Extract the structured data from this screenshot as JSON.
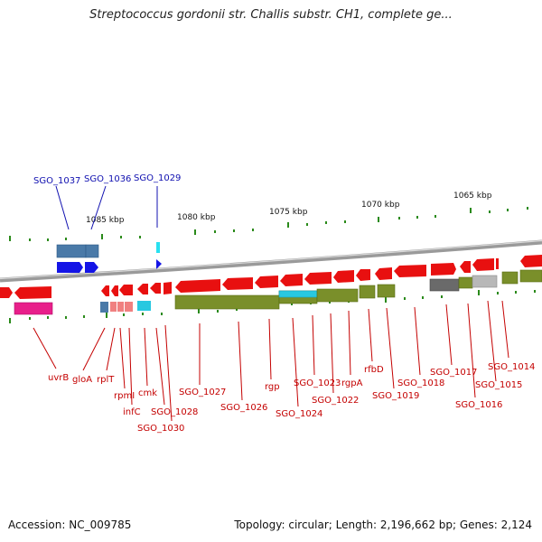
{
  "title": "Streptococcus gordonii str. Challis substr. CH1, complete ge...",
  "footer": {
    "accession": "Accession: NC_009785",
    "summary": "Topology: circular; Length: 2,196,662 bp; Genes: 2,124"
  },
  "scale_labels": [
    "1085 kbp",
    "1080 kbp",
    "1075 kbp",
    "1070 kbp",
    "1065 kbp"
  ],
  "top_genes": [
    "SGO_1037",
    "SGO_1036",
    "SGO_1029"
  ],
  "bottom_genes": [
    "uvrB",
    "gloA",
    "rplT",
    "rpmI",
    "infC",
    "cmk",
    "SGO_1028",
    "SGO_1030",
    "SGO_1027",
    "SGO_1026",
    "rgp",
    "SGO_1024",
    "SGO_1023",
    "SGO_1022",
    "rgpA",
    "rfbD",
    "SGO_1019",
    "SGO_1018",
    "SGO_1017",
    "SGO_1016",
    "SGO_1015",
    "SGO_1014"
  ],
  "colors": {
    "gene_red": "#e81010",
    "cds_green": "#7a8f2a",
    "backbone_gray": "#8a8a8a",
    "tick_green": "#2a8a1a",
    "label_red": "#c40000",
    "label_blue": "#1010b0",
    "blue_gene": "#1414e6",
    "steel_blue": "#4a7aa8",
    "cyan": "#28c8e0",
    "pink": "#e8208a",
    "salmon": "#f08080",
    "gray_block": "#6a6a6a"
  }
}
